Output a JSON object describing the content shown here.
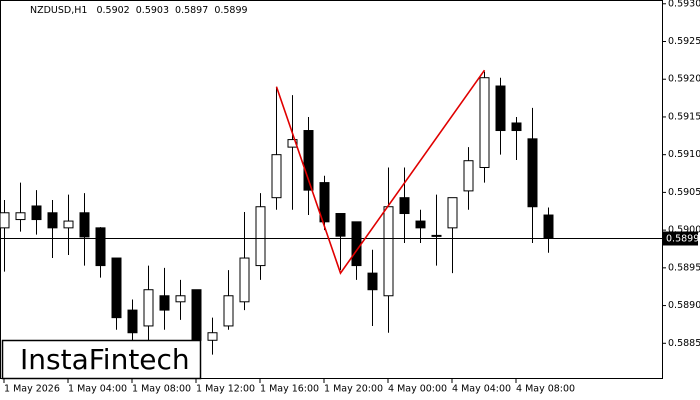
{
  "chart_data": {
    "type": "candlestick",
    "symbol": "NZDUSD,H1",
    "watermark": "InstaFintech",
    "up_color": "#ffffff",
    "down_color": "#000000",
    "outline_color": "#000000",
    "categories": [
      "1 May 2026",
      null,
      null,
      null,
      "1 May 04:00",
      null,
      null,
      null,
      "1 May 08:00",
      null,
      null,
      null,
      "1 May 12:00",
      null,
      null,
      null,
      "1 May 16:00",
      null,
      null,
      null,
      "1 May 20:00",
      null,
      null,
      null,
      "4 May 00:00",
      null,
      null,
      null,
      "4 May 04:00",
      null,
      null,
      null,
      "4 May 08:00",
      null,
      null
    ],
    "open": [
      0.59003,
      0.59014,
      0.59032,
      0.59023,
      0.59003,
      0.59023,
      0.59003,
      0.58963,
      0.58894,
      0.58873,
      0.58913,
      0.58905,
      0.58921,
      0.58854,
      0.58873,
      0.58905,
      0.58953,
      0.59043,
      0.5911,
      0.59132,
      0.59063,
      0.59022,
      0.59011,
      0.58943,
      0.58913,
      0.59043,
      0.59012,
      0.58993,
      0.59003,
      0.59052,
      0.59083,
      0.59191,
      0.59142,
      0.59121,
      0.5902
    ],
    "high": [
      0.5904,
      0.59063,
      0.59053,
      0.5904,
      0.59047,
      0.59049,
      0.59004,
      0.58963,
      0.58908,
      0.58953,
      0.5895,
      0.58934,
      0.58921,
      0.58884,
      0.58947,
      0.59024,
      0.59049,
      0.5919,
      0.59179,
      0.5915,
      0.59072,
      0.59022,
      0.59011,
      0.58974,
      0.59083,
      0.59083,
      0.59027,
      0.59047,
      0.59043,
      0.5911,
      0.5921,
      0.59202,
      0.5915,
      0.59162,
      0.5903
    ],
    "low": [
      0.58945,
      0.58998,
      0.58994,
      0.58963,
      0.58967,
      0.58953,
      0.58937,
      0.58868,
      0.58854,
      0.58854,
      0.58868,
      0.58881,
      0.58835,
      0.58835,
      0.58868,
      0.58894,
      0.58934,
      0.59027,
      0.59027,
      0.5902,
      0.59,
      0.58947,
      0.58934,
      0.58873,
      0.58864,
      0.58983,
      0.58983,
      0.58953,
      0.58943,
      0.59027,
      0.59063,
      0.591,
      0.59093,
      0.58983,
      0.5897
    ],
    "close": [
      0.59023,
      0.59023,
      0.59014,
      0.59003,
      0.59012,
      0.58991,
      0.58953,
      0.58884,
      0.58864,
      0.58921,
      0.58894,
      0.58913,
      0.58854,
      0.58864,
      0.58913,
      0.58963,
      0.59031,
      0.591,
      0.5912,
      0.59053,
      0.59011,
      0.58992,
      0.58953,
      0.58921,
      0.59031,
      0.59022,
      0.59003,
      0.58992,
      0.59043,
      0.59092,
      0.59202,
      0.59132,
      0.59132,
      0.59031,
      0.5899
    ],
    "ylim": [
      0.58804,
      0.59305
    ],
    "yticks": [
      {
        "value": 0.593,
        "label": "0.5930"
      },
      {
        "value": 0.5925,
        "label": "0.5925"
      },
      {
        "value": 0.592,
        "label": "0.5920"
      },
      {
        "value": 0.5915,
        "label": "0.5915"
      },
      {
        "value": 0.591,
        "label": "0.5910"
      },
      {
        "value": 0.5905,
        "label": "0.5905"
      },
      {
        "value": 0.59,
        "label": "0.5900"
      },
      {
        "value": 0.5895,
        "label": "0.5895"
      },
      {
        "value": 0.589,
        "label": "0.5890"
      },
      {
        "value": 0.5885,
        "label": "0.5885"
      }
    ],
    "pattern": {
      "color": "#e00000",
      "x": [
        17,
        21,
        30
      ],
      "y": [
        0.5919,
        0.58943,
        0.59212
      ]
    }
  }
}
